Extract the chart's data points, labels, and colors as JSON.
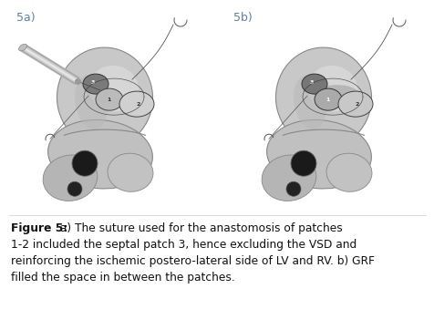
{
  "title_5a": "5a)",
  "title_5b": "5b)",
  "label_color": "#5a7fb5",
  "label_fontsize": 9,
  "caption_bold": "Figure 5:",
  "caption_after_bold": " a) The suture used for the anastomosis of patches",
  "caption_line2": "1-2 included the septal patch 3, hence excluding the VSD and",
  "caption_line3": "reinforcing the ischemic postero-lateral side of LV and RV. b) GRF",
  "caption_line4": "filled the space in between the patches.",
  "caption_fontsize": 8.8,
  "background_color": "#ffffff",
  "fig_width": 4.77,
  "fig_height": 3.62
}
